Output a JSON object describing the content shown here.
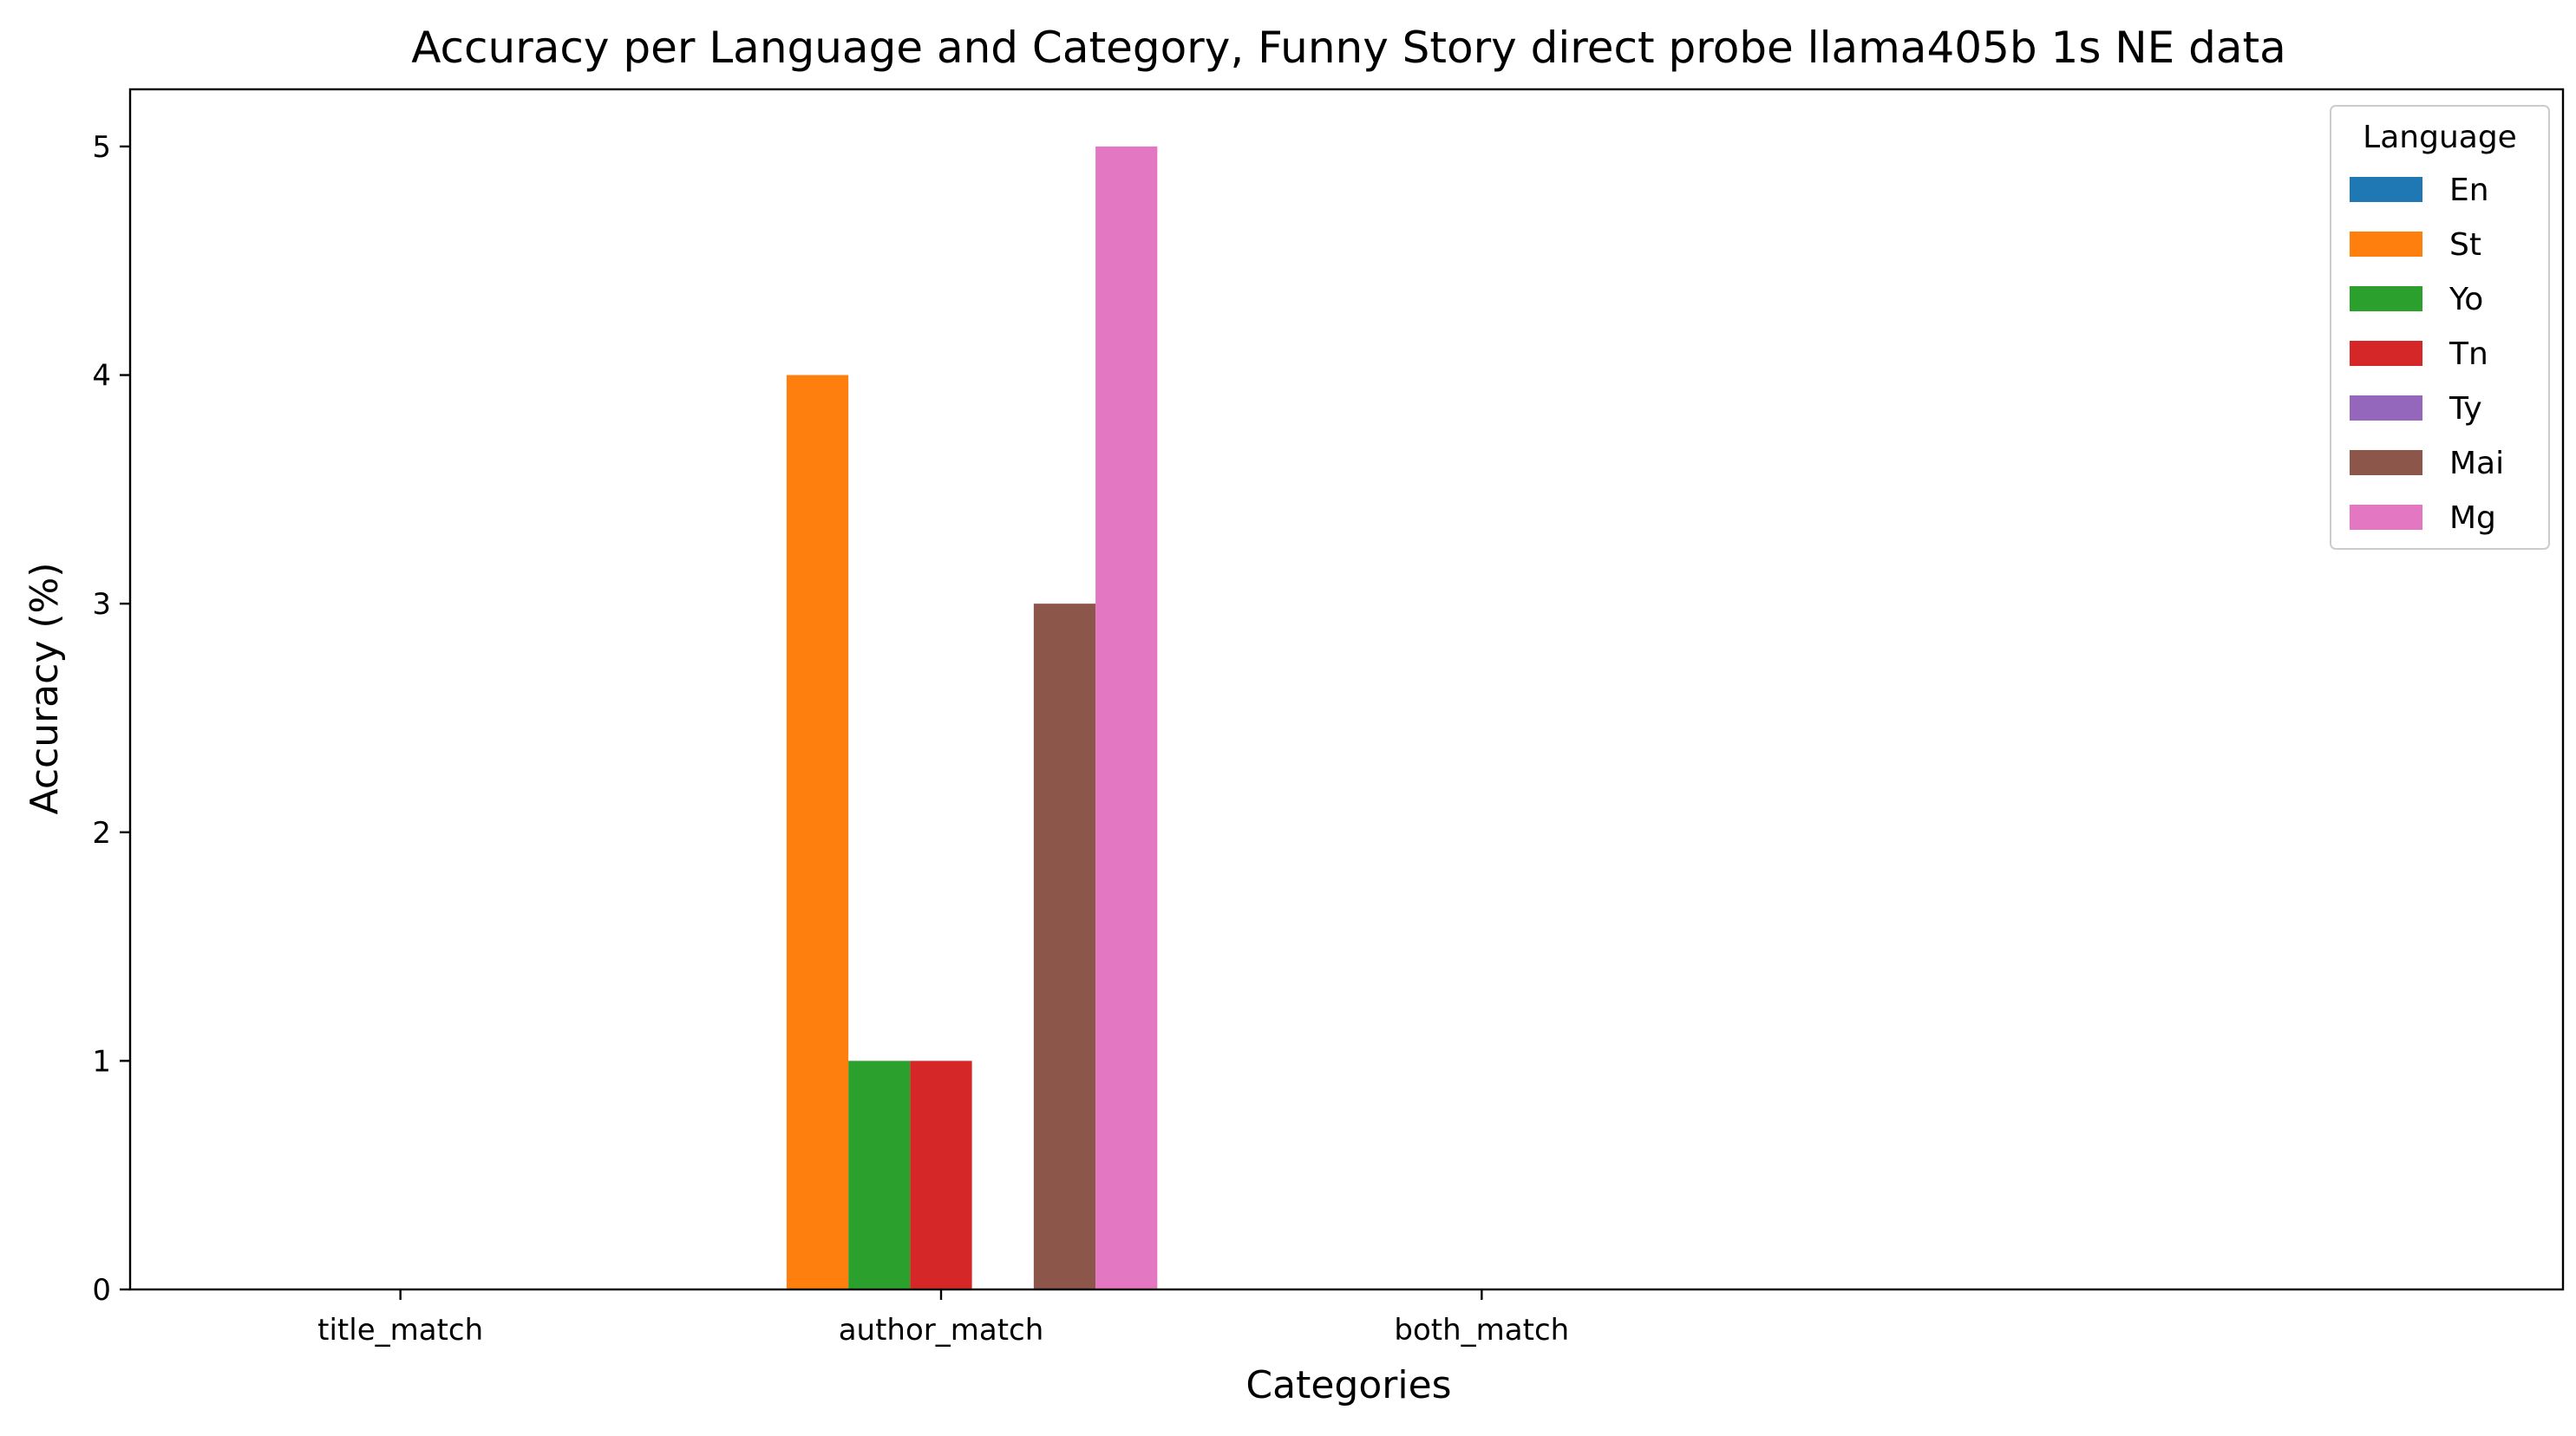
{
  "chart_data": {
    "type": "bar",
    "title": "Accuracy per Language and Category, Funny Story direct probe llama405b 1s NE data",
    "xlabel": "Categories",
    "ylabel": "Accuracy (%)",
    "categories": [
      "title_match",
      "author_match",
      "both_match"
    ],
    "ylim": [
      0,
      5.25
    ],
    "yticks": [
      0,
      1,
      2,
      3,
      4,
      5
    ],
    "grid": false,
    "legend": {
      "title": "Language",
      "placement": "top-right"
    },
    "series": [
      {
        "name": "En",
        "color": "#1f77b4",
        "values": [
          0,
          0,
          0
        ]
      },
      {
        "name": "St",
        "color": "#ff7f0e",
        "values": [
          0,
          4,
          0
        ]
      },
      {
        "name": "Yo",
        "color": "#2ca02c",
        "values": [
          0,
          1,
          0
        ]
      },
      {
        "name": "Tn",
        "color": "#d62728",
        "values": [
          0,
          1,
          0
        ]
      },
      {
        "name": "Ty",
        "color": "#9467bd",
        "values": [
          0,
          0,
          0
        ]
      },
      {
        "name": "Mai",
        "color": "#8c564b",
        "values": [
          0,
          3,
          0
        ]
      },
      {
        "name": "Mg",
        "color": "#e377c2",
        "values": [
          0,
          5,
          0
        ]
      }
    ]
  }
}
